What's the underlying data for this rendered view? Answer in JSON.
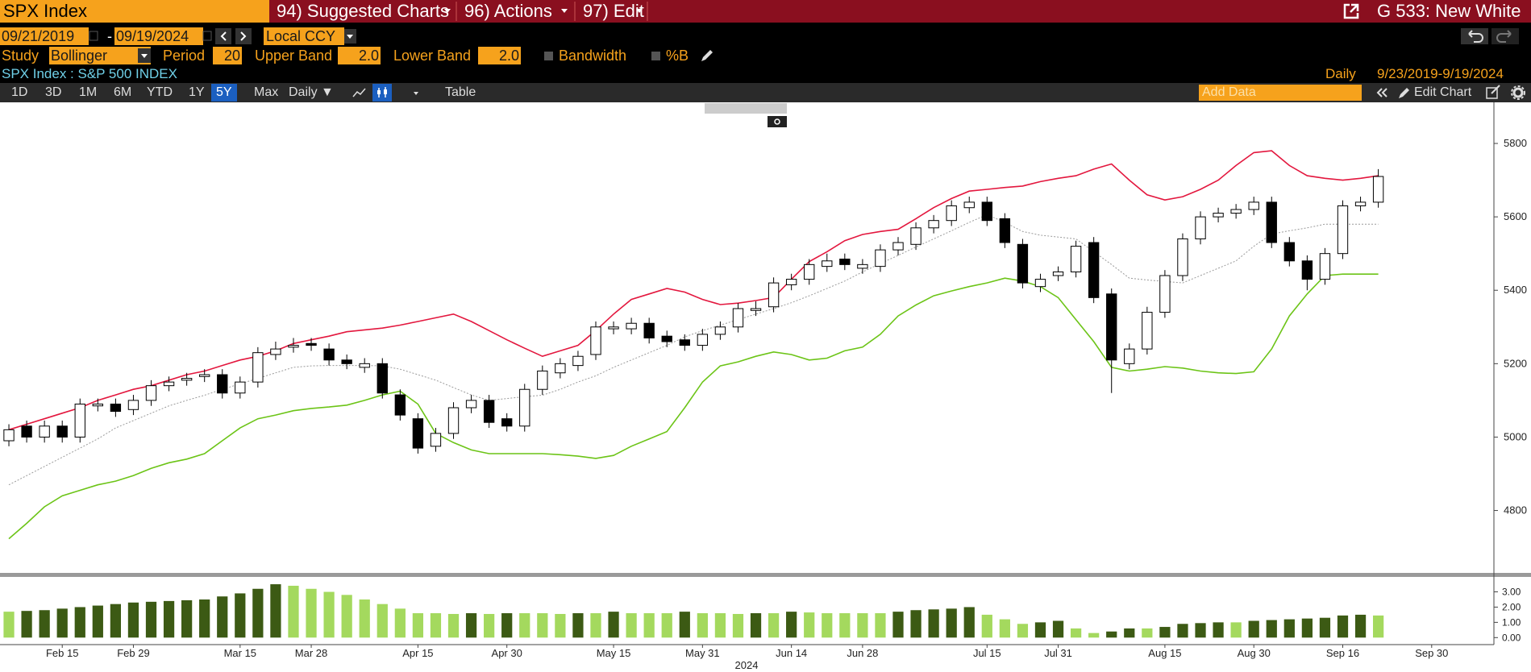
{
  "header": {
    "ticker": "SPX Index",
    "menus": [
      "94) Suggested Charts",
      "96) Actions",
      "97) Edit"
    ],
    "launchpad": "G 533: New White"
  },
  "controls": {
    "start_date": "09/21/2019",
    "separator": "-",
    "end_date": "09/19/2024",
    "currency": "Local CCY"
  },
  "study": {
    "label": "Study",
    "name": "Bollinger",
    "period_label": "Period",
    "period": "20",
    "upper_label": "Upper Band",
    "upper": "2.0",
    "lower_label": "Lower Band",
    "lower": "2.0",
    "bandwidth": "Bandwidth",
    "percent_b": "%B"
  },
  "security": {
    "name": "SPX Index : S&P 500 INDEX",
    "frequency": "Daily",
    "range": "9/23/2019-9/19/2024"
  },
  "toolbar": {
    "ranges": [
      "1D",
      "3D",
      "1M",
      "6M",
      "YTD",
      "1Y",
      "5Y",
      "Max"
    ],
    "active_range": 6,
    "periodicity": "Daily ▼",
    "table": "Table",
    "add_data": "Add Data",
    "edit_chart": "Edit Chart"
  },
  "chart_data": {
    "type": "candlestick",
    "categories": [
      null,
      null,
      null,
      "Feb 15",
      null,
      null,
      null,
      "Feb 29",
      null,
      null,
      null,
      null,
      null,
      "Mar 15",
      null,
      null,
      null,
      "Mar 28",
      null,
      null,
      null,
      null,
      null,
      "Apr 15",
      null,
      null,
      null,
      null,
      "Apr 30",
      null,
      null,
      null,
      null,
      null,
      "May 15",
      null,
      null,
      null,
      null,
      "May 31",
      null,
      null,
      null,
      null,
      "Jun 14",
      null,
      null,
      null,
      "Jun 28",
      null,
      null,
      null,
      null,
      null,
      null,
      "Jul 15",
      null,
      null,
      null,
      "Jul 31",
      null,
      null,
      null,
      null,
      null,
      "Aug 15",
      null,
      null,
      null,
      null,
      "Aug 30",
      null,
      null,
      null,
      null,
      "Sep 16",
      null,
      null,
      null,
      null,
      "Sep 30",
      null,
      null,
      null
    ],
    "x_year": "2024",
    "open": [
      4990,
      5030,
      5000,
      5030,
      5000,
      5085,
      5090,
      5075,
      5100,
      5140,
      5155,
      5165,
      5170,
      5120,
      5150,
      5225,
      5245,
      5255,
      5240,
      5210,
      5190,
      5200,
      5115,
      5050,
      4975,
      5010,
      5080,
      5100,
      5050,
      5030,
      5130,
      5175,
      5195,
      5225,
      5295,
      5295,
      5310,
      5275,
      5265,
      5250,
      5280,
      5300,
      5345,
      5355,
      5415,
      5430,
      5465,
      5485,
      5460,
      5465,
      5510,
      5525,
      5570,
      5590,
      5625,
      5640,
      5595,
      5525,
      5410,
      5440,
      5450,
      5530,
      5390,
      5200,
      5240,
      5340,
      5440,
      5540,
      5600,
      5610,
      5620,
      5640,
      5530,
      5480,
      5430,
      5500,
      5630,
      5640,
      null,
      null,
      null,
      null,
      null,
      null
    ],
    "high": [
      5035,
      5045,
      5045,
      5045,
      5105,
      5105,
      5105,
      5115,
      5155,
      5165,
      5175,
      5185,
      5185,
      5165,
      5245,
      5260,
      5270,
      5270,
      5255,
      5225,
      5215,
      5215,
      5130,
      5065,
      5025,
      5095,
      5115,
      5115,
      5065,
      5145,
      5195,
      5215,
      5235,
      5315,
      5315,
      5325,
      5325,
      5290,
      5280,
      5295,
      5315,
      5365,
      5370,
      5435,
      5445,
      5485,
      5500,
      5500,
      5485,
      5525,
      5545,
      5585,
      5605,
      5645,
      5655,
      5655,
      5610,
      5540,
      5445,
      5465,
      5535,
      5545,
      5405,
      5255,
      5355,
      5455,
      5555,
      5615,
      5625,
      5635,
      5655,
      5655,
      5545,
      5495,
      5515,
      5645,
      5655,
      5730,
      null,
      null,
      null,
      null,
      null,
      null
    ],
    "low": [
      4975,
      4985,
      4985,
      4985,
      4985,
      5070,
      5055,
      5060,
      5085,
      5125,
      5140,
      5150,
      5105,
      5105,
      5135,
      5210,
      5230,
      5235,
      5195,
      5185,
      5175,
      5105,
      5045,
      4955,
      4960,
      4995,
      5065,
      5025,
      5015,
      5015,
      5115,
      5160,
      5180,
      5210,
      5280,
      5280,
      5255,
      5245,
      5235,
      5235,
      5265,
      5285,
      5330,
      5340,
      5400,
      5415,
      5450,
      5455,
      5445,
      5450,
      5495,
      5510,
      5555,
      5575,
      5610,
      5575,
      5515,
      5405,
      5395,
      5425,
      5435,
      5365,
      5120,
      5185,
      5225,
      5325,
      5425,
      5525,
      5585,
      5595,
      5605,
      5515,
      5465,
      5400,
      5415,
      5485,
      5615,
      5625,
      null,
      null,
      null,
      null,
      null,
      null
    ],
    "close": [
      5020,
      5000,
      5030,
      5000,
      5090,
      5090,
      5070,
      5100,
      5140,
      5150,
      5160,
      5170,
      5120,
      5150,
      5230,
      5240,
      5250,
      5250,
      5210,
      5200,
      5200,
      5120,
      5060,
      4970,
      5010,
      5080,
      5100,
      5040,
      5030,
      5130,
      5180,
      5200,
      5220,
      5300,
      5300,
      5310,
      5270,
      5260,
      5250,
      5280,
      5300,
      5350,
      5350,
      5420,
      5430,
      5470,
      5480,
      5470,
      5470,
      5510,
      5530,
      5570,
      5590,
      5630,
      5640,
      5590,
      5530,
      5420,
      5430,
      5450,
      5520,
      5380,
      5210,
      5240,
      5340,
      5440,
      5540,
      5600,
      5610,
      5620,
      5640,
      5530,
      5480,
      5430,
      5500,
      5630,
      5640,
      5710,
      null,
      null,
      null,
      null,
      null,
      null
    ],
    "up_color": "#ffffff",
    "down_color": "#000000",
    "upper_band": {
      "color": "#e3173e",
      "values": [
        5020,
        5035,
        5050,
        5065,
        5080,
        5100,
        5115,
        5130,
        5140,
        5155,
        5170,
        5180,
        5195,
        5210,
        5220,
        5235,
        5255,
        5265,
        5275,
        5287,
        5292,
        5297,
        5305,
        5315,
        5325,
        5335,
        5315,
        5290,
        5265,
        5242,
        5220,
        5235,
        5250,
        5290,
        5335,
        5375,
        5390,
        5405,
        5395,
        5375,
        5361,
        5365,
        5372,
        5380,
        5430,
        5478,
        5505,
        5535,
        5552,
        5560,
        5566,
        5595,
        5625,
        5650,
        5670,
        5675,
        5680,
        5684,
        5696,
        5705,
        5712,
        5730,
        5744,
        5700,
        5660,
        5646,
        5655,
        5675,
        5700,
        5740,
        5775,
        5780,
        5740,
        5712,
        5705,
        5700,
        5705,
        5712,
        null,
        null,
        null,
        null,
        null,
        null
      ]
    },
    "middle_band": {
      "color": "#9a9a9a",
      "values": [
        4870,
        4895,
        4920,
        4945,
        4970,
        4995,
        5025,
        5045,
        5065,
        5085,
        5100,
        5114,
        5130,
        5145,
        5160,
        5175,
        5190,
        5194,
        5195,
        5195,
        5195,
        5194,
        5185,
        5170,
        5155,
        5135,
        5115,
        5100,
        5105,
        5110,
        5114,
        5130,
        5150,
        5167,
        5190,
        5210,
        5230,
        5250,
        5273,
        5290,
        5305,
        5320,
        5335,
        5350,
        5366,
        5385,
        5405,
        5425,
        5450,
        5473,
        5495,
        5518,
        5540,
        5562,
        5585,
        5606,
        5585,
        5560,
        5550,
        5545,
        5540,
        5505,
        5470,
        5433,
        5428,
        5424,
        5420,
        5440,
        5460,
        5480,
        5520,
        5553,
        5562,
        5570,
        5580,
        5580,
        5580,
        5580,
        null,
        null,
        null,
        null,
        null,
        null
      ]
    },
    "lower_band": {
      "color": "#6cc417",
      "values": [
        4723,
        4765,
        4810,
        4840,
        4855,
        4870,
        4880,
        4895,
        4915,
        4930,
        4940,
        4955,
        4990,
        5025,
        5050,
        5060,
        5072,
        5078,
        5082,
        5087,
        5100,
        5115,
        5125,
        5090,
        5010,
        4985,
        4965,
        4955,
        4955,
        4955,
        4955,
        4952,
        4948,
        4942,
        4950,
        4975,
        4995,
        5015,
        5080,
        5150,
        5194,
        5205,
        5220,
        5232,
        5225,
        5210,
        5215,
        5235,
        5245,
        5280,
        5330,
        5360,
        5385,
        5398,
        5410,
        5420,
        5433,
        5425,
        5410,
        5380,
        5320,
        5260,
        5190,
        5180,
        5185,
        5192,
        5188,
        5180,
        5175,
        5173,
        5178,
        5240,
        5330,
        5390,
        5440,
        5444,
        5444,
        5444,
        null,
        null,
        null,
        null,
        null,
        null
      ]
    },
    "ylim": [
      4630,
      5912
    ],
    "yticks": [
      4800,
      5000,
      5200,
      5400,
      5600,
      5800
    ],
    "lower_panel": {
      "type": "bar",
      "values": [
        1.7,
        1.75,
        1.8,
        1.9,
        2.0,
        2.1,
        2.2,
        2.3,
        2.35,
        2.4,
        2.45,
        2.5,
        2.7,
        2.9,
        3.2,
        3.5,
        3.4,
        3.2,
        3.0,
        2.8,
        2.5,
        2.2,
        1.9,
        1.6,
        1.6,
        1.55,
        1.6,
        1.55,
        1.6,
        1.6,
        1.6,
        1.55,
        1.6,
        1.6,
        1.7,
        1.6,
        1.6,
        1.6,
        1.7,
        1.6,
        1.6,
        1.55,
        1.6,
        1.6,
        1.7,
        1.65,
        1.6,
        1.6,
        1.6,
        1.6,
        1.7,
        1.8,
        1.85,
        1.9,
        2.0,
        1.5,
        1.2,
        0.9,
        1.0,
        1.1,
        0.6,
        0.3,
        0.4,
        0.6,
        0.6,
        0.7,
        0.9,
        0.95,
        1.0,
        1.0,
        1.1,
        1.15,
        1.2,
        1.25,
        1.3,
        1.45,
        1.5,
        1.45,
        null,
        null,
        null,
        null,
        null,
        null
      ],
      "rising_color": "#3c5a14",
      "falling_color": "#a4d95e",
      "ylim": [
        -0.46,
        3.98
      ],
      "yticks": [
        {
          "value": 0,
          "label": "0.00"
        },
        {
          "value": 1,
          "label": "1.00"
        },
        {
          "value": 2,
          "label": "2.00"
        },
        {
          "value": 3,
          "label": "3.00"
        }
      ]
    }
  }
}
